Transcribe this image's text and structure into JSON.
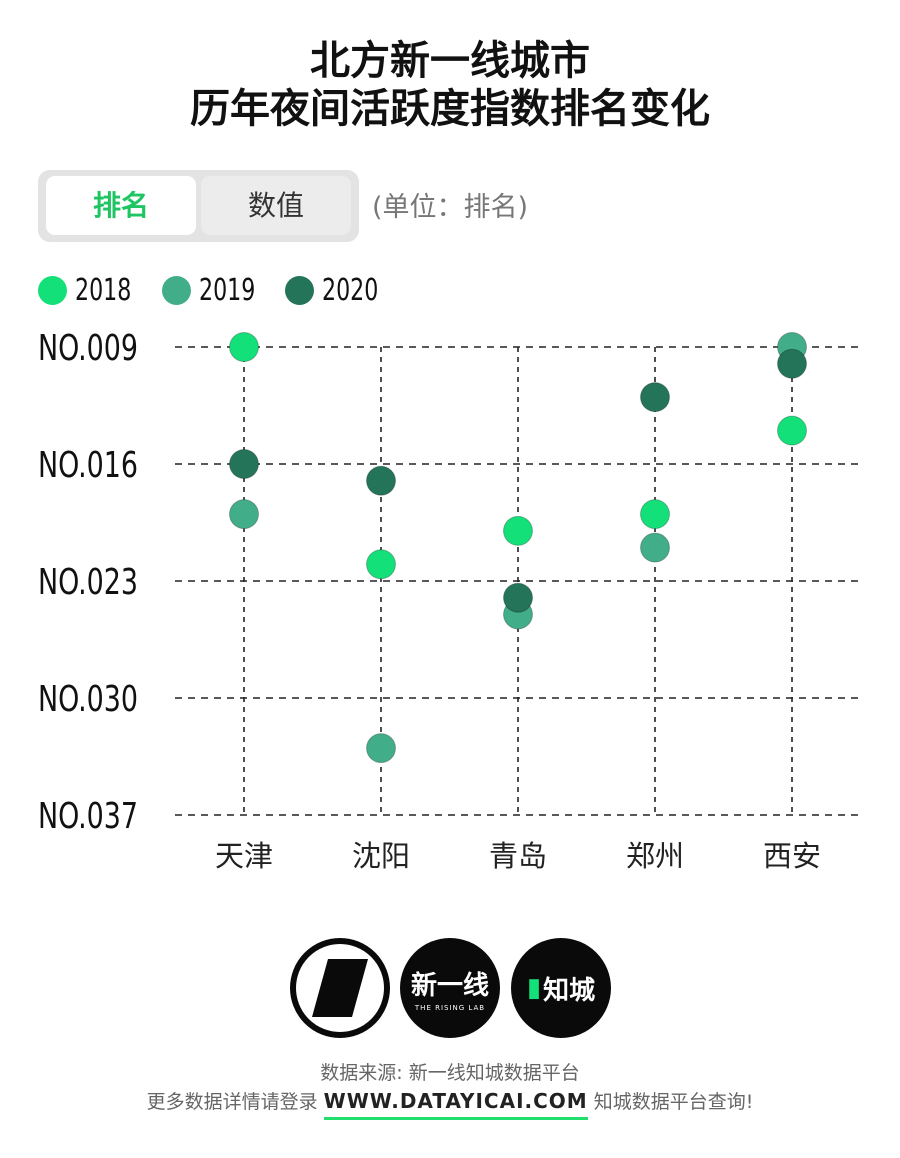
{
  "title": {
    "line1": "北方新一线城市",
    "line2": "历年夜间活跃度指数排名变化"
  },
  "toggle": {
    "rank_label": "排名",
    "value_label": "数值"
  },
  "unit": "(单位：排名)",
  "colors": {
    "2018": "#14e07a",
    "2019": "#42ad89",
    "2020": "#24745a",
    "accent": "#1fc463"
  },
  "legend": [
    {
      "label": "2018",
      "color": "#14e07a"
    },
    {
      "label": "2019",
      "color": "#42ad89"
    },
    {
      "label": "2020",
      "color": "#24745a"
    }
  ],
  "chart_data": {
    "type": "scatter",
    "categories": [
      "天津",
      "沈阳",
      "青岛",
      "郑州",
      "西安"
    ],
    "ytick_labels": [
      "NO.009",
      "NO.016",
      "NO.023",
      "NO.030",
      "NO.037"
    ],
    "yticks": [
      9,
      16,
      23,
      30,
      37
    ],
    "ylim": [
      9,
      37
    ],
    "y_reversed": true,
    "grid": true,
    "legend_position": "top-left",
    "series": [
      {
        "name": "2018",
        "color": "#14e07a",
        "values": [
          9,
          22,
          20,
          19,
          14
        ]
      },
      {
        "name": "2019",
        "color": "#42ad89",
        "values": [
          19,
          33,
          25,
          21,
          9
        ]
      },
      {
        "name": "2020",
        "color": "#24745a",
        "values": [
          16,
          17,
          24,
          12,
          10
        ]
      }
    ]
  },
  "logos": {
    "b_text": "新一线",
    "b_sub": "THE RISING LAB",
    "c_text": "知城"
  },
  "footer": {
    "source": "数据来源: 新一线知城数据平台",
    "more_prefix": "更多数据详情请登录",
    "url": "WWW.DATAYICAI.COM",
    "more_suffix": "知城数据平台查询!"
  }
}
